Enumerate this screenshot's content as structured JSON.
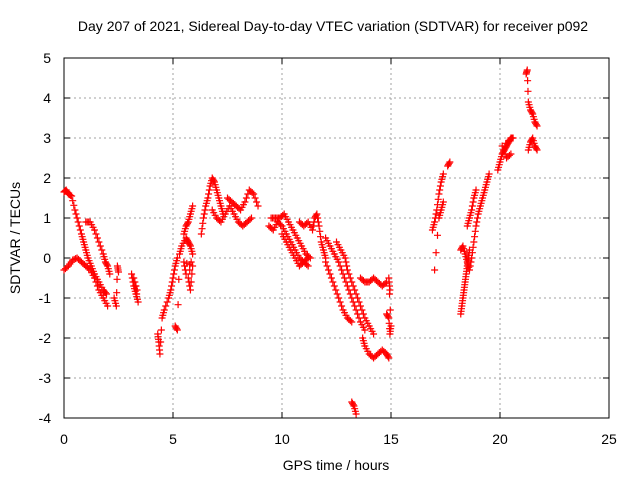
{
  "chart_data": {
    "type": "scatter",
    "title": "Day 207 of 2021, Sidereal Day-to-day VTEC variation (SDTVAR) for receiver p092",
    "xlabel": "GPS time / hours",
    "ylabel": "SDTVAR / TECUs",
    "xlim": [
      0,
      25
    ],
    "ylim": [
      -4,
      5
    ],
    "xticks": [
      "0",
      "5",
      "10",
      "15",
      "20",
      "25"
    ],
    "yticks": [
      "-4",
      "-3",
      "-2",
      "-1",
      "0",
      "1",
      "2",
      "3",
      "4",
      "5"
    ],
    "grid": true,
    "marker": "plus",
    "color": "#ff0000",
    "segments": [
      [
        [
          0.0,
          -0.3
        ],
        [
          0.2,
          -0.2
        ],
        [
          0.4,
          -0.05
        ],
        [
          0.6,
          0.0
        ],
        [
          0.8,
          -0.1
        ],
        [
          1.0,
          -0.2
        ],
        [
          1.2,
          -0.3
        ],
        [
          1.4,
          -0.5
        ],
        [
          1.6,
          -0.8
        ],
        [
          1.8,
          -1.0
        ],
        [
          2.0,
          -1.2
        ]
      ],
      [
        [
          0.0,
          1.65
        ],
        [
          0.1,
          1.7
        ],
        [
          0.2,
          1.6
        ],
        [
          0.35,
          1.55
        ],
        [
          0.5,
          1.2
        ],
        [
          0.65,
          0.9
        ],
        [
          0.8,
          0.6
        ],
        [
          0.9,
          0.4
        ],
        [
          1.0,
          0.2
        ],
        [
          1.1,
          0.0
        ],
        [
          1.25,
          -0.2
        ],
        [
          1.4,
          -0.4
        ],
        [
          1.6,
          -0.6
        ],
        [
          1.8,
          -0.8
        ],
        [
          1.95,
          -0.9
        ]
      ],
      [
        [
          1.0,
          0.9
        ],
        [
          1.2,
          0.9
        ],
        [
          1.4,
          0.7
        ],
        [
          1.6,
          0.4
        ],
        [
          1.8,
          0.1
        ],
        [
          1.9,
          -0.1
        ],
        [
          2.0,
          -0.2
        ],
        [
          2.1,
          -0.4
        ]
      ],
      [
        [
          2.3,
          -1.0
        ],
        [
          2.4,
          -1.2
        ],
        [
          2.45,
          -0.2
        ],
        [
          2.5,
          -0.35
        ]
      ],
      [
        [
          3.1,
          -0.4
        ],
        [
          3.2,
          -0.7
        ],
        [
          3.3,
          -0.9
        ],
        [
          3.4,
          -1.1
        ],
        [
          3.2,
          -0.5
        ],
        [
          3.35,
          -0.8
        ]
      ],
      [
        [
          4.3,
          -1.9
        ],
        [
          4.35,
          -2.1
        ],
        [
          4.4,
          -2.4
        ],
        [
          4.5,
          -1.5
        ],
        [
          4.6,
          -1.3
        ],
        [
          4.8,
          -1.0
        ],
        [
          4.9,
          -0.8
        ],
        [
          5.0,
          -0.5
        ],
        [
          5.1,
          -0.2
        ],
        [
          5.2,
          0.0
        ]
      ],
      [
        [
          5.1,
          -1.7
        ],
        [
          5.2,
          -1.8
        ],
        [
          5.3,
          0.1
        ],
        [
          5.4,
          0.3
        ],
        [
          5.6,
          0.5
        ],
        [
          5.7,
          0.4
        ],
        [
          5.8,
          0.3
        ],
        [
          5.9,
          0.1
        ],
        [
          5.7,
          -0.5
        ],
        [
          5.8,
          -0.8
        ],
        [
          5.9,
          -0.2
        ],
        [
          5.5,
          -0.1
        ],
        [
          5.6,
          -0.4
        ]
      ],
      [
        [
          5.5,
          0.6
        ],
        [
          5.6,
          0.8
        ],
        [
          5.7,
          0.9
        ],
        [
          5.8,
          1.1
        ],
        [
          5.9,
          1.3
        ]
      ],
      [
        [
          6.3,
          0.6
        ],
        [
          6.4,
          1.0
        ],
        [
          6.5,
          1.3
        ],
        [
          6.6,
          1.5
        ],
        [
          6.7,
          1.8
        ],
        [
          6.8,
          2.0
        ],
        [
          6.9,
          1.9
        ],
        [
          7.0,
          1.7
        ],
        [
          7.1,
          1.5
        ],
        [
          7.2,
          1.3
        ],
        [
          7.3,
          1.1
        ]
      ],
      [
        [
          6.8,
          1.2
        ],
        [
          7.0,
          1.0
        ],
        [
          7.2,
          0.9
        ],
        [
          7.4,
          1.1
        ],
        [
          7.6,
          1.3
        ],
        [
          7.8,
          1.1
        ],
        [
          8.0,
          0.9
        ],
        [
          8.2,
          0.8
        ],
        [
          8.4,
          0.9
        ],
        [
          8.6,
          1.0
        ]
      ],
      [
        [
          7.5,
          1.5
        ],
        [
          7.7,
          1.4
        ],
        [
          7.9,
          1.3
        ],
        [
          8.1,
          1.2
        ],
        [
          8.3,
          1.4
        ],
        [
          8.5,
          1.7
        ],
        [
          8.7,
          1.6
        ],
        [
          8.9,
          1.3
        ]
      ],
      [
        [
          9.4,
          0.8
        ],
        [
          9.6,
          0.7
        ],
        [
          9.8,
          0.9
        ],
        [
          10.0,
          0.8
        ],
        [
          10.2,
          0.6
        ],
        [
          10.4,
          0.4
        ],
        [
          10.6,
          0.2
        ],
        [
          10.8,
          0.0
        ],
        [
          11.0,
          -0.1
        ],
        [
          11.2,
          -0.2
        ]
      ],
      [
        [
          9.5,
          1.0
        ],
        [
          9.7,
          1.0
        ],
        [
          9.9,
          1.0
        ],
        [
          10.1,
          1.1
        ],
        [
          10.3,
          0.9
        ],
        [
          10.5,
          0.7
        ],
        [
          10.7,
          0.5
        ],
        [
          10.9,
          0.3
        ],
        [
          11.1,
          0.1
        ],
        [
          11.3,
          0.0
        ]
      ],
      [
        [
          10.0,
          0.6
        ],
        [
          10.2,
          0.4
        ],
        [
          10.4,
          0.2
        ],
        [
          10.6,
          0.0
        ],
        [
          10.8,
          -0.2
        ],
        [
          11.0,
          -0.1
        ],
        [
          11.2,
          0.0
        ]
      ],
      [
        [
          10.8,
          0.9
        ],
        [
          11.0,
          0.8
        ],
        [
          11.2,
          0.9
        ],
        [
          11.4,
          0.7
        ],
        [
          11.5,
          1.0
        ],
        [
          11.6,
          1.1
        ],
        [
          11.7,
          0.8
        ],
        [
          11.8,
          0.4
        ],
        [
          11.9,
          0.2
        ],
        [
          12.0,
          0.0
        ]
      ],
      [
        [
          12.0,
          0.5
        ],
        [
          12.2,
          0.3
        ],
        [
          12.4,
          0.1
        ],
        [
          12.6,
          -0.1
        ],
        [
          12.8,
          -0.4
        ],
        [
          13.0,
          -0.7
        ],
        [
          13.2,
          -1.0
        ],
        [
          13.4,
          -1.3
        ],
        [
          13.6,
          -1.6
        ],
        [
          13.8,
          -1.8
        ]
      ],
      [
        [
          12.0,
          -0.1
        ],
        [
          12.2,
          -0.4
        ],
        [
          12.4,
          -0.7
        ],
        [
          12.6,
          -1.0
        ],
        [
          12.8,
          -1.3
        ],
        [
          13.0,
          -1.5
        ],
        [
          13.2,
          -1.6
        ]
      ],
      [
        [
          12.5,
          0.4
        ],
        [
          12.7,
          0.2
        ],
        [
          12.9,
          0.0
        ],
        [
          13.0,
          -0.3
        ],
        [
          13.2,
          -0.6
        ],
        [
          13.4,
          -0.9
        ],
        [
          13.6,
          -1.2
        ],
        [
          13.8,
          -1.5
        ],
        [
          14.0,
          -1.7
        ],
        [
          14.2,
          -1.9
        ]
      ],
      [
        [
          13.2,
          -3.6
        ],
        [
          13.3,
          -3.7
        ],
        [
          13.4,
          -3.9
        ]
      ],
      [
        [
          13.7,
          -2.0
        ],
        [
          13.8,
          -2.2
        ],
        [
          14.0,
          -2.4
        ],
        [
          14.2,
          -2.5
        ],
        [
          14.4,
          -2.4
        ],
        [
          14.6,
          -2.3
        ],
        [
          14.8,
          -2.4
        ],
        [
          14.9,
          -2.5
        ]
      ],
      [
        [
          13.6,
          -0.5
        ],
        [
          13.8,
          -0.6
        ],
        [
          14.0,
          -0.6
        ],
        [
          14.2,
          -0.5
        ],
        [
          14.4,
          -0.6
        ],
        [
          14.6,
          -0.7
        ],
        [
          14.8,
          -0.6
        ]
      ],
      [
        [
          14.8,
          -1.4
        ],
        [
          14.9,
          -1.5
        ],
        [
          14.95,
          -1.9
        ],
        [
          15.0,
          -1.7
        ],
        [
          14.9,
          -0.5
        ],
        [
          14.95,
          -0.8
        ]
      ],
      [
        [
          16.9,
          0.7
        ],
        [
          17.0,
          0.9
        ],
        [
          17.1,
          1.2
        ],
        [
          17.2,
          1.6
        ],
        [
          17.3,
          1.9
        ],
        [
          17.4,
          2.1
        ]
      ],
      [
        [
          17.0,
          -0.3
        ],
        [
          17.2,
          1.0
        ],
        [
          17.3,
          1.2
        ],
        [
          17.4,
          1.4
        ]
      ],
      [
        [
          17.6,
          2.3
        ],
        [
          17.7,
          2.4
        ]
      ],
      [
        [
          18.2,
          -1.4
        ],
        [
          18.25,
          -1.2
        ],
        [
          18.3,
          -1.0
        ],
        [
          18.35,
          -0.8
        ],
        [
          18.4,
          -0.6
        ],
        [
          18.45,
          -0.4
        ],
        [
          18.5,
          -0.2
        ],
        [
          18.55,
          0.0
        ],
        [
          18.6,
          0.2
        ]
      ],
      [
        [
          18.2,
          0.2
        ],
        [
          18.3,
          0.3
        ],
        [
          18.4,
          0.1
        ],
        [
          18.5,
          -0.1
        ],
        [
          18.6,
          -0.3
        ],
        [
          18.7,
          0.0
        ],
        [
          18.8,
          0.4
        ],
        [
          18.9,
          0.8
        ],
        [
          19.0,
          1.1
        ],
        [
          19.1,
          1.3
        ],
        [
          19.2,
          1.5
        ],
        [
          19.3,
          1.7
        ],
        [
          19.4,
          1.9
        ],
        [
          19.5,
          2.1
        ]
      ],
      [
        [
          18.5,
          0.8
        ],
        [
          18.6,
          1.0
        ],
        [
          18.7,
          1.2
        ],
        [
          18.8,
          1.5
        ],
        [
          18.9,
          1.7
        ]
      ],
      [
        [
          19.9,
          2.2
        ],
        [
          20.0,
          2.4
        ],
        [
          20.1,
          2.6
        ],
        [
          20.2,
          2.7
        ],
        [
          20.3,
          2.8
        ],
        [
          20.4,
          2.9
        ],
        [
          20.5,
          3.0
        ],
        [
          20.6,
          3.0
        ],
        [
          20.1,
          2.8
        ],
        [
          20.3,
          2.5
        ],
        [
          20.5,
          2.6
        ]
      ],
      [
        [
          21.2,
          4.6
        ],
        [
          21.25,
          4.7
        ],
        [
          21.3,
          3.9
        ],
        [
          21.4,
          3.7
        ],
        [
          21.5,
          3.6
        ],
        [
          21.6,
          3.4
        ],
        [
          21.7,
          3.3
        ]
      ],
      [
        [
          21.3,
          2.7
        ],
        [
          21.4,
          2.9
        ],
        [
          21.5,
          3.0
        ],
        [
          21.6,
          2.8
        ],
        [
          21.7,
          2.7
        ]
      ]
    ]
  }
}
